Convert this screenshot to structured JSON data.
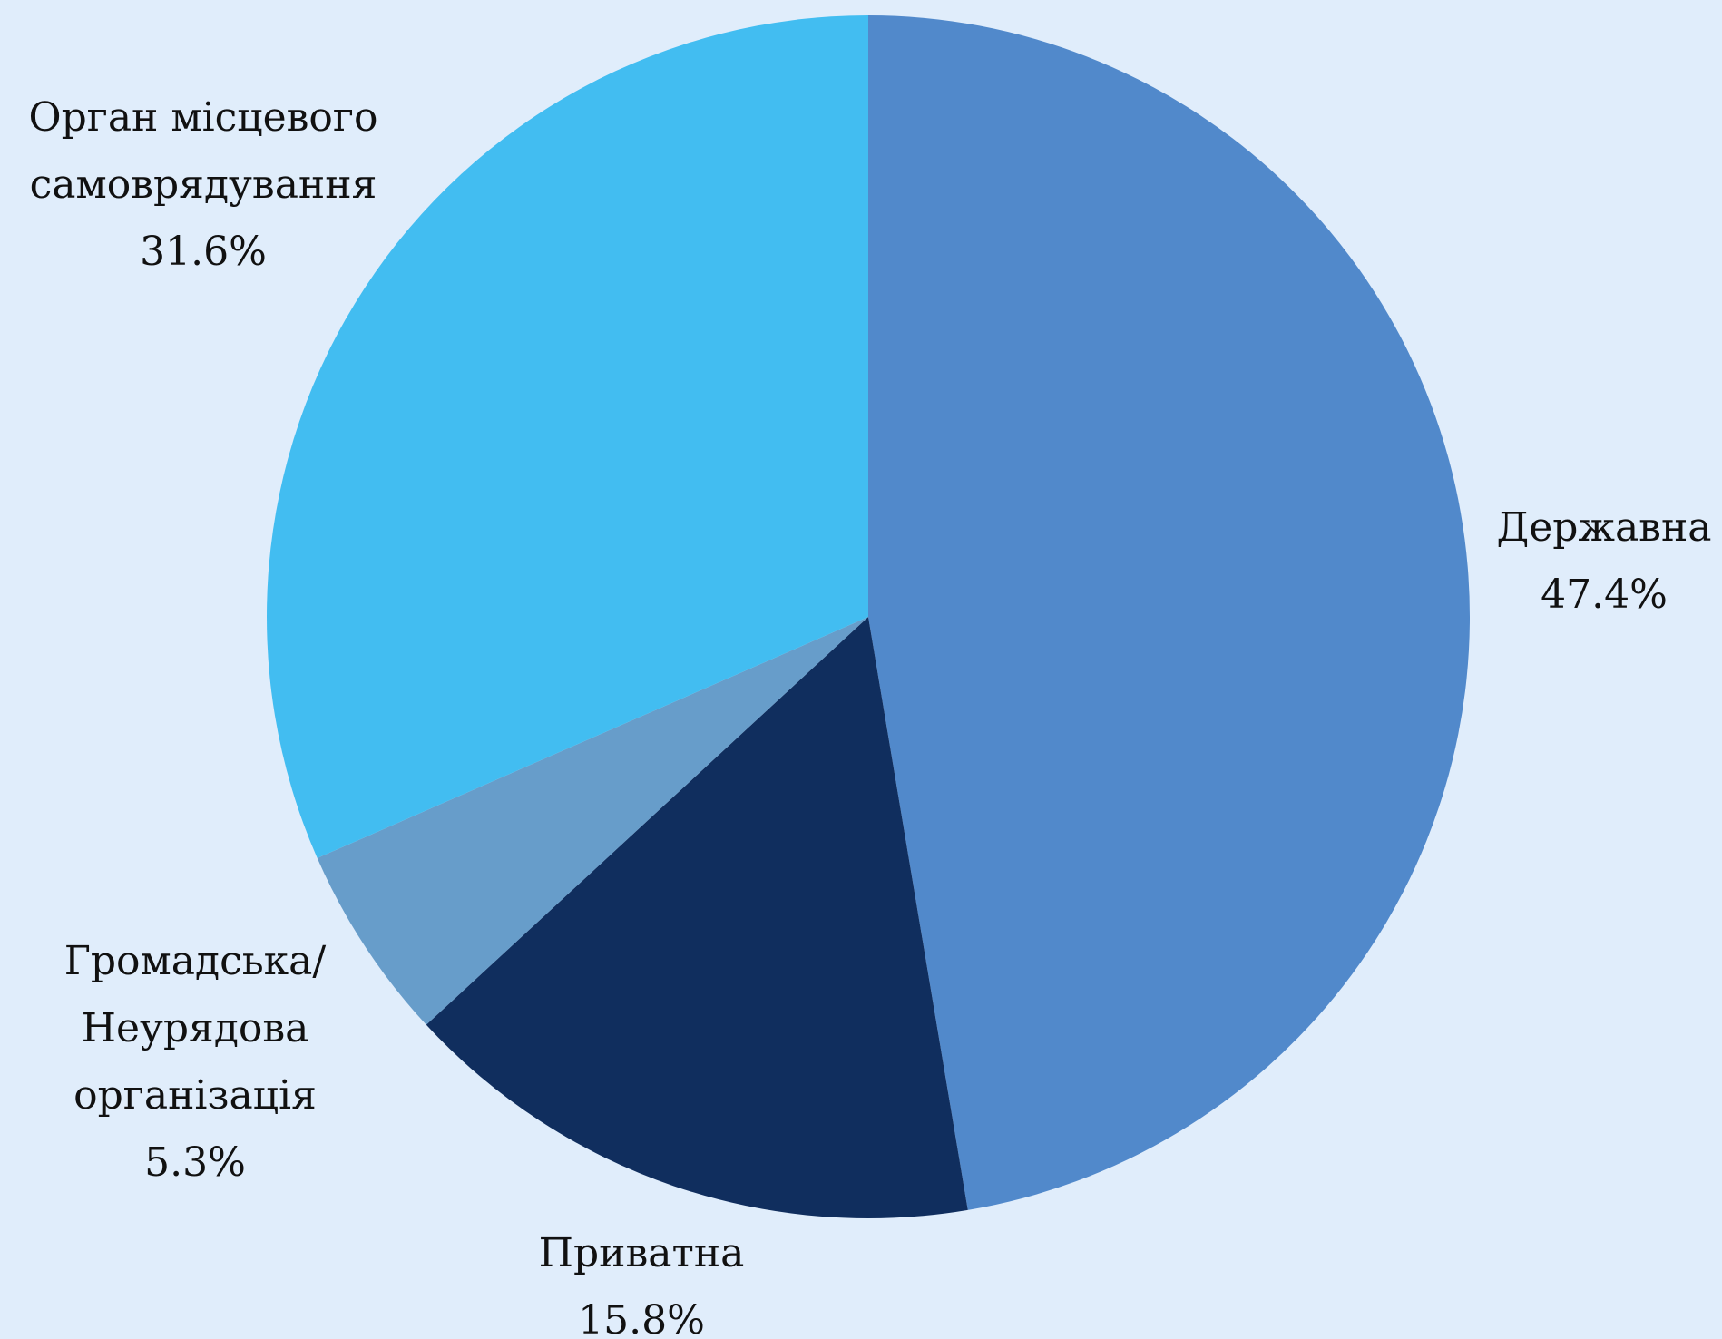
{
  "chart_data": {
    "type": "pie",
    "start_angle_deg": 0,
    "direction": "clockwise",
    "slices": [
      {
        "label_lines": [
          "Державна"
        ],
        "value": 47.4,
        "value_label": "47.4%",
        "color": "#5189cb"
      },
      {
        "label_lines": [
          "Приватна"
        ],
        "value": 15.8,
        "value_label": "15.8%",
        "color": "#102e5e"
      },
      {
        "label_lines": [
          "Громадська/",
          "Неурядова",
          "організація"
        ],
        "value": 5.3,
        "value_label": "5.3%",
        "color": "#679dca"
      },
      {
        "label_lines": [
          "Орган місцевого",
          "самоврядування"
        ],
        "value": 31.6,
        "value_label": "31.6%",
        "color": "#42bdf1"
      }
    ],
    "background": "#e0edfb"
  }
}
